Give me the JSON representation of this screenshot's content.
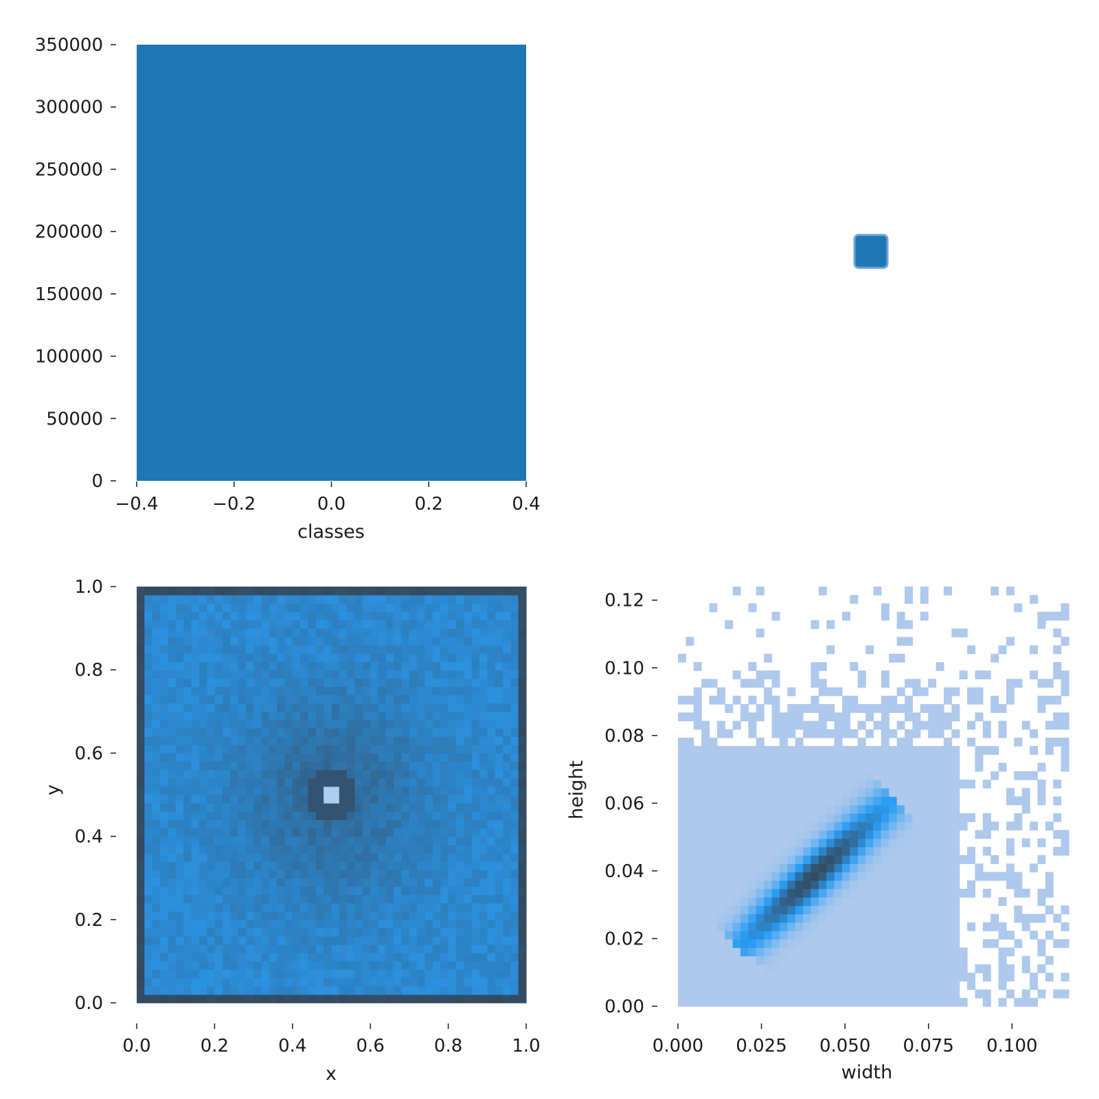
{
  "colors": {
    "bar": "#1f77b4",
    "heat_dark": "#2f4f6f",
    "heat_mid": "#3c6e9e",
    "heat_bright": "#2a9df4",
    "hist_light": "#aec9ec",
    "hist_mid": "#2a9df4",
    "hist_dark": "#34495e"
  },
  "chart_data": [
    {
      "type": "bar",
      "xlabel": "classes",
      "ylabel": "",
      "categories": [
        0
      ],
      "values": [
        350000
      ],
      "xlim": [
        -0.4,
        0.4
      ],
      "ylim": [
        0,
        350000
      ],
      "xticks": [
        "−0.4",
        "−0.2",
        "0.0",
        "0.2",
        "0.4"
      ],
      "yticks": [
        "0",
        "50000",
        "100000",
        "150000",
        "200000",
        "250000",
        "300000",
        "350000"
      ]
    },
    {
      "type": "heatmap",
      "xlabel": "",
      "ylabel": "",
      "xlim": [
        0,
        1
      ],
      "ylim": [
        0,
        1
      ],
      "note_marker": "single small square marker cluster",
      "marker_xy": [
        0.5,
        0.5
      ],
      "xticks": [],
      "yticks": []
    },
    {
      "type": "heatmap",
      "xlabel": "x",
      "ylabel": "y",
      "xlim": [
        0,
        1
      ],
      "ylim": [
        0,
        1
      ],
      "bins": 50,
      "peak_xy": [
        0.5,
        0.5
      ],
      "xticks": [
        "0.0",
        "0.2",
        "0.4",
        "0.6",
        "0.8",
        "1.0"
      ],
      "yticks": [
        "0.0",
        "0.2",
        "0.4",
        "0.6",
        "0.8",
        "1.0"
      ]
    },
    {
      "type": "heatmap",
      "xlabel": "width",
      "ylabel": "height",
      "xlim": [
        0,
        0.117
      ],
      "ylim": [
        0,
        0.124
      ],
      "bins": 50,
      "dense_band": {
        "width": [
          0.02,
          0.065
        ],
        "height": [
          0.02,
          0.065
        ]
      },
      "xticks": [
        "0.000",
        "0.025",
        "0.050",
        "0.075",
        "0.100"
      ],
      "yticks": [
        "0.00",
        "0.02",
        "0.04",
        "0.06",
        "0.08",
        "0.10",
        "0.12"
      ]
    }
  ]
}
